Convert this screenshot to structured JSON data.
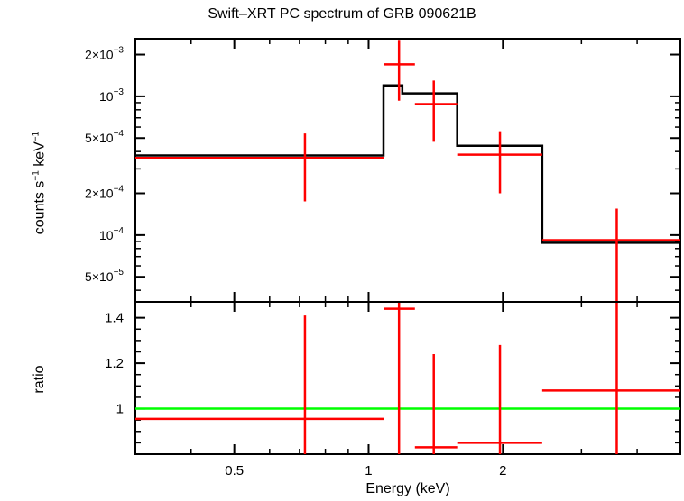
{
  "title": "Swift–XRT PC spectrum of GRB 090621B",
  "xlabel": "Energy (keV)",
  "colors": {
    "data": "#ff0000",
    "model": "#000000",
    "unity": "#00ff00"
  },
  "chart_data": [
    {
      "type": "line",
      "panel": "spectrum",
      "ylabel_base": "counts s",
      "ylabel_mid": " keV",
      "ylabel_sup": "−1",
      "xscale": "log",
      "yscale": "log",
      "xlim": [
        0.3,
        5.0
      ],
      "ylim": [
        3.3e-05,
        0.0026
      ],
      "xticks": [
        {
          "v": 0.5,
          "label": "0.5"
        },
        {
          "v": 1,
          "label": "1"
        },
        {
          "v": 2,
          "label": "2"
        }
      ],
      "yticks": [
        {
          "v": 5e-05,
          "m": "5",
          "e": "−5"
        },
        {
          "v": 0.0001,
          "m": "",
          "e": "−4"
        },
        {
          "v": 0.0002,
          "m": "2",
          "e": "−4"
        },
        {
          "v": 0.0005,
          "m": "5",
          "e": "−4"
        },
        {
          "v": 0.001,
          "m": "",
          "e": "−3"
        },
        {
          "v": 0.002,
          "m": "2",
          "e": "−3"
        }
      ],
      "series": [
        {
          "role": "data",
          "points": [
            {
              "x": 0.72,
              "xlo": 0.3,
              "xhi": 1.08,
              "y": 0.00036,
              "ylo": 0.000175,
              "yhi": 0.00054
            },
            {
              "x": 1.17,
              "xlo": 1.08,
              "xhi": 1.27,
              "y": 0.0017,
              "ylo": 0.00093,
              "yhi": 0.00255
            },
            {
              "x": 1.4,
              "xlo": 1.27,
              "xhi": 1.58,
              "y": 0.00088,
              "ylo": 0.00047,
              "yhi": 0.0013
            },
            {
              "x": 1.97,
              "xlo": 1.58,
              "xhi": 2.45,
              "y": 0.00038,
              "ylo": 0.0002,
              "yhi": 0.00056
            },
            {
              "x": 3.6,
              "xlo": 2.45,
              "xhi": 5.0,
              "y": 9.2e-05,
              "ylo": 3.3e-05,
              "yhi": 0.000155
            }
          ]
        },
        {
          "role": "model",
          "steps": [
            {
              "xlo": 0.3,
              "xhi": 1.08,
              "y": 0.000375
            },
            {
              "xlo": 1.08,
              "xhi": 1.19,
              "y": 0.0012
            },
            {
              "xlo": 1.19,
              "xhi": 1.58,
              "y": 0.00105
            },
            {
              "xlo": 1.58,
              "xhi": 2.45,
              "y": 0.00044
            },
            {
              "xlo": 2.45,
              "xhi": 5.0,
              "y": 8.8e-05
            }
          ]
        }
      ]
    },
    {
      "type": "line",
      "panel": "ratio",
      "ylabel": "ratio",
      "xscale": "log",
      "yscale": "linear",
      "xlim": [
        0.3,
        5.0
      ],
      "ylim": [
        0.8,
        1.47
      ],
      "xticks": [
        {
          "v": 0.5,
          "label": "0.5"
        },
        {
          "v": 1,
          "label": "1"
        },
        {
          "v": 2,
          "label": "2"
        }
      ],
      "yticks": [
        {
          "v": 1,
          "label": "1"
        },
        {
          "v": 1.2,
          "label": "1.2"
        },
        {
          "v": 1.4,
          "label": "1.4"
        }
      ],
      "reference": 1,
      "series": [
        {
          "role": "data",
          "points": [
            {
              "x": 0.72,
              "xlo": 0.3,
              "xhi": 1.08,
              "y": 0.955,
              "ylo": 0.8,
              "yhi": 1.41
            },
            {
              "x": 1.17,
              "xlo": 1.08,
              "xhi": 1.27,
              "y": 1.44,
              "ylo": 0.8,
              "yhi": 1.47
            },
            {
              "x": 1.4,
              "xlo": 1.27,
              "xhi": 1.58,
              "y": 0.83,
              "ylo": 0.8,
              "yhi": 1.24
            },
            {
              "x": 1.97,
              "xlo": 1.58,
              "xhi": 2.45,
              "y": 0.85,
              "ylo": 0.8,
              "yhi": 1.28
            },
            {
              "x": 3.6,
              "xlo": 2.45,
              "xhi": 5.0,
              "y": 1.08,
              "ylo": 0.8,
              "yhi": 1.47
            }
          ]
        }
      ]
    }
  ]
}
